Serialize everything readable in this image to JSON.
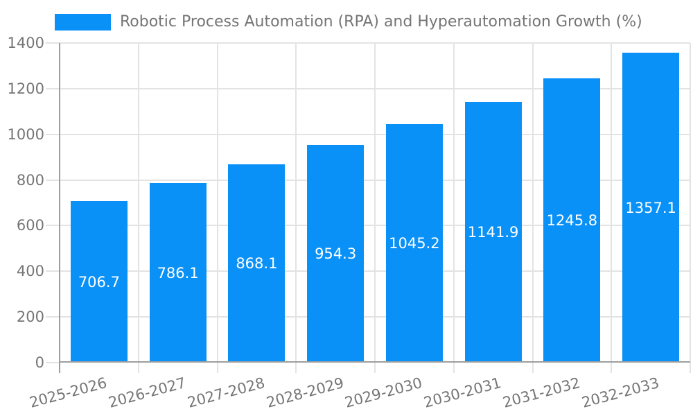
{
  "chart_data": {
    "type": "bar",
    "title": "Robotic Process Automation (RPA) and Hyperautomation Growth (%)",
    "legend": {
      "position": "top-left",
      "label": "Robotic Process Automation (RPA) and Hyperautomation Growth (%)"
    },
    "categories": [
      "2025-2026",
      "2026-2027",
      "2027-2028",
      "2028-2029",
      "2029-2030",
      "2030-2031",
      "2031-2032",
      "2032-2033"
    ],
    "values": [
      706.7,
      786.1,
      868.1,
      954.3,
      1045.2,
      1141.9,
      1245.8,
      1357.1
    ],
    "bar_labels": [
      "706.7",
      "786.1",
      "868.1",
      "954.3",
      "1045.2",
      "1141.9",
      "1245.8",
      "1357.1"
    ],
    "xlabel": "",
    "ylabel": "",
    "ylim": [
      0,
      1400
    ],
    "yticks": [
      0,
      200,
      400,
      600,
      800,
      1000,
      1200,
      1400
    ],
    "grid": true,
    "x_tick_rotation_deg": -15,
    "colors": {
      "bar": "#0a91f8",
      "grid": "#e3e3e3",
      "axis": "#9e9e9e",
      "text": "#757575",
      "bar_label": "#ffffff",
      "background": "#ffffff"
    }
  }
}
